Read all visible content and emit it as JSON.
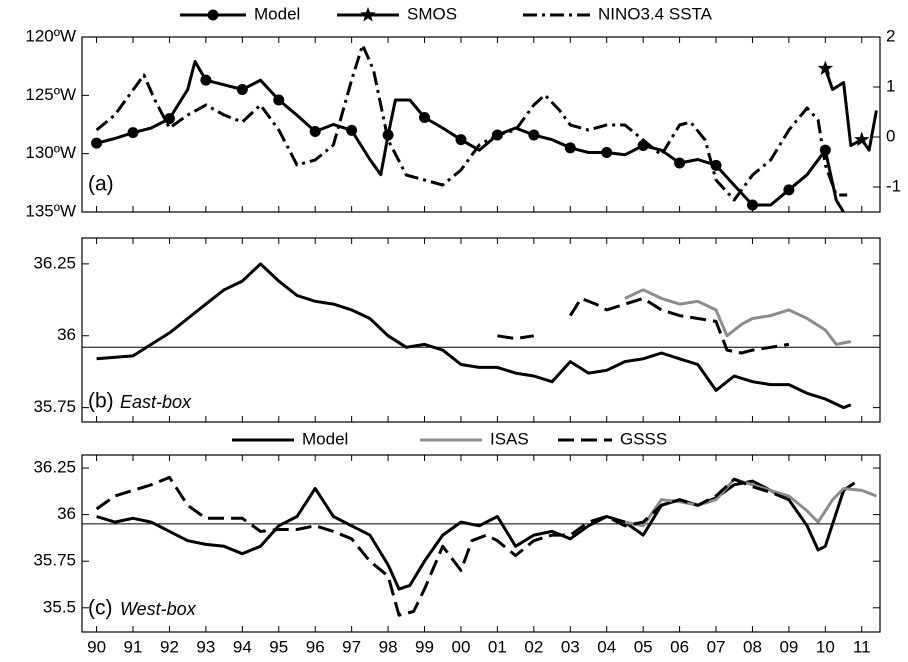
{
  "chart_data": [
    {
      "type": "line",
      "label": "(a)",
      "xlim": [
        1989.6,
        2011.5
      ],
      "ylim": [
        135,
        120
      ],
      "yticks": [
        {
          "value": 120,
          "label": "120ºW"
        },
        {
          "value": 125,
          "label": "125ºW"
        },
        {
          "value": 130,
          "label": "130ºW"
        },
        {
          "value": 135,
          "label": "135ºW"
        }
      ],
      "y2lim": [
        -1.5,
        2
      ],
      "y2ticks": [
        -1,
        0,
        1,
        2
      ],
      "series": [
        {
          "name": "Model",
          "color": "#000000",
          "marker": "circle",
          "x": [
            1990,
            1990.5,
            1991,
            1991.5,
            1992,
            1992.5,
            1992.7,
            1993,
            1993.5,
            1994,
            1994.5,
            1995,
            1995.5,
            1996,
            1996.5,
            1997,
            1997.5,
            1997.8,
            1998,
            1998.2,
            1998.6,
            1999,
            1999.5,
            2000,
            2000.5,
            2001,
            2001.5,
            2002,
            2002.5,
            2003,
            2003.5,
            2004,
            2004.5,
            2005,
            2005.5,
            2006,
            2006.5,
            2007,
            2007.5,
            2008,
            2008.5,
            2009,
            2009.5,
            2010,
            2010.3,
            2010.5
          ],
          "values": [
            129.1,
            128.7,
            128.2,
            127.8,
            127,
            124.5,
            122.1,
            123.7,
            124.1,
            124.5,
            123.7,
            125.4,
            126.7,
            128.1,
            127.5,
            128,
            130.5,
            131.8,
            128.4,
            125.4,
            125.4,
            126.9,
            127.8,
            128.8,
            129.7,
            128.4,
            127.8,
            128.4,
            128.8,
            129.5,
            129.9,
            129.9,
            130.1,
            129.3,
            129.7,
            130.8,
            130.5,
            131,
            132.7,
            134.4,
            134.4,
            133.1,
            131.8,
            129.7,
            134,
            135
          ]
        },
        {
          "name": "SMOS",
          "color": "#000000",
          "marker": "star",
          "x": [
            2010,
            2010.2,
            2010.5,
            2010.7,
            2011,
            2011.2,
            2011.4
          ],
          "values": [
            122.7,
            124.5,
            123.9,
            129.3,
            128.8,
            129.7,
            126.3
          ]
        },
        {
          "name": "NINO3.4 SSTA",
          "color": "#000000",
          "axis": "y2",
          "dash": "14,5,3,5",
          "x": [
            1990,
            1990.5,
            1991,
            1991.3,
            1991.6,
            1992,
            1992.5,
            1993,
            1993.5,
            1994,
            1994.5,
            1995,
            1995.5,
            1996,
            1996.5,
            1997,
            1997.3,
            1997.6,
            1998,
            1998.5,
            1999,
            1999.5,
            2000,
            2000.5,
            2001,
            2001.5,
            2002,
            2002.3,
            2002.7,
            2003,
            2003.5,
            2004,
            2004.5,
            2005,
            2005.5,
            2006,
            2006.3,
            2006.7,
            2007,
            2007.5,
            2008,
            2008.5,
            2009,
            2009.5,
            2009.8,
            2010,
            2010.3,
            2010.6
          ],
          "values": [
            0.14,
            0.44,
            0.94,
            1.24,
            0.74,
            0.18,
            0.44,
            0.64,
            0.44,
            0.3,
            0.64,
            0.14,
            -0.56,
            -0.46,
            -0.16,
            1.14,
            1.84,
            1.34,
            -0.06,
            -0.76,
            -0.86,
            -0.96,
            -0.66,
            -0.16,
            0.04,
            0.14,
            0.64,
            0.84,
            0.54,
            0.24,
            0.14,
            0.24,
            0.24,
            -0.06,
            -0.36,
            0.24,
            0.3,
            -0.06,
            -0.86,
            -1.26,
            -0.76,
            -0.46,
            0.14,
            0.58,
            0.34,
            -0.56,
            -1.16,
            -1.16
          ]
        }
      ]
    },
    {
      "type": "line",
      "label": "(b)",
      "subtitle": "East-box",
      "xlim": [
        1989.6,
        2011.5
      ],
      "ylim": [
        35.7,
        36.34
      ],
      "yticks": [
        {
          "value": 35.75,
          "label": "35.75"
        },
        {
          "value": 36,
          "label": "36"
        },
        {
          "value": 36.25,
          "label": "36.25"
        }
      ],
      "reference": 35.96,
      "series": [
        {
          "name": "Model",
          "color": "#000000",
          "x": [
            1990,
            1991,
            1991.5,
            1992,
            1992.5,
            1993,
            1993.5,
            1994,
            1994.5,
            1995,
            1995.5,
            1996,
            1996.5,
            1997,
            1997.5,
            1998,
            1998.5,
            1999,
            1999.5,
            2000,
            2000.5,
            2001,
            2001.5,
            2002,
            2002.5,
            2003,
            2003.5,
            2004,
            2004.5,
            2005,
            2005.5,
            2006,
            2006.5,
            2007,
            2007.5,
            2008,
            2008.5,
            2009,
            2009.5,
            2010,
            2010.5,
            2010.7
          ],
          "values": [
            35.92,
            35.93,
            35.97,
            36.01,
            36.06,
            36.11,
            36.16,
            36.19,
            36.25,
            36.19,
            36.14,
            36.12,
            36.11,
            36.09,
            36.06,
            36,
            35.96,
            35.97,
            35.95,
            35.9,
            35.89,
            35.89,
            35.87,
            35.86,
            35.84,
            35.91,
            35.87,
            35.88,
            35.91,
            35.92,
            35.94,
            35.92,
            35.9,
            35.81,
            35.86,
            35.84,
            35.83,
            35.83,
            35.8,
            35.78,
            35.75,
            35.76
          ]
        },
        {
          "name": "ISAS",
          "color": "#8c8c8c",
          "x": [
            2004.5,
            2005,
            2005.5,
            2006,
            2006.5,
            2007,
            2007.3,
            2007.7,
            2008,
            2008.5,
            2009,
            2009.5,
            2010,
            2010.3,
            2010.7
          ],
          "values": [
            36.13,
            36.16,
            36.13,
            36.11,
            36.12,
            36.09,
            36,
            36.04,
            36.06,
            36.07,
            36.09,
            36.06,
            36.02,
            35.97,
            35.98
          ]
        },
        {
          "name": "GSSS",
          "color": "#000000",
          "dash": "16,7",
          "x": [
            2000.2,
            2000.5,
            2001,
            2001.5,
            2002,
            2002.5,
            2003,
            2003.3,
            2003.7,
            2004,
            2004.5,
            2005,
            2005.5,
            2006,
            2006.5,
            2007,
            2007.3,
            2007.7,
            2008,
            2008.5,
            2009
          ],
          "values": [
            35.95,
            null,
            36,
            35.99,
            36,
            null,
            36.07,
            36.13,
            36.11,
            36.09,
            36.11,
            36.13,
            36.09,
            36.07,
            36.06,
            36.05,
            35.95,
            35.94,
            35.95,
            35.96,
            35.97
          ]
        }
      ]
    },
    {
      "type": "line",
      "label": "(c)",
      "subtitle": "West-box",
      "xlim": [
        1989.6,
        2011.5
      ],
      "ylim": [
        35.37,
        36.32
      ],
      "yticks": [
        {
          "value": 35.5,
          "label": "35.5"
        },
        {
          "value": 35.75,
          "label": "35.75"
        },
        {
          "value": 36,
          "label": "36"
        },
        {
          "value": 36.25,
          "label": "36.25"
        }
      ],
      "reference": 35.95,
      "xticks": [
        {
          "value": 1990,
          "label": "90"
        },
        {
          "value": 1991,
          "label": "91"
        },
        {
          "value": 1992,
          "label": "92"
        },
        {
          "value": 1993,
          "label": "93"
        },
        {
          "value": 1994,
          "label": "94"
        },
        {
          "value": 1995,
          "label": "95"
        },
        {
          "value": 1996,
          "label": "96"
        },
        {
          "value": 1997,
          "label": "97"
        },
        {
          "value": 1998,
          "label": "98"
        },
        {
          "value": 1999,
          "label": "99"
        },
        {
          "value": 2000,
          "label": "00"
        },
        {
          "value": 2001,
          "label": "01"
        },
        {
          "value": 2002,
          "label": "02"
        },
        {
          "value": 2003,
          "label": "03"
        },
        {
          "value": 2004,
          "label": "04"
        },
        {
          "value": 2005,
          "label": "05"
        },
        {
          "value": 2006,
          "label": "06"
        },
        {
          "value": 2007,
          "label": "07"
        },
        {
          "value": 2008,
          "label": "08"
        },
        {
          "value": 2009,
          "label": "09"
        },
        {
          "value": 2010,
          "label": "10"
        },
        {
          "value": 2011,
          "label": "11"
        }
      ],
      "series": [
        {
          "color": "#000000",
          "x": [
            1990,
            1990.5,
            1991,
            1991.5,
            1992,
            1992.5,
            1993,
            1993.5,
            1994,
            1994.5,
            1995,
            1995.5,
            1996,
            1996.5,
            1997,
            1997.5,
            1998,
            1998.3,
            1998.6,
            1999,
            1999.5,
            2000,
            2000.5,
            2001,
            2001.5,
            2002,
            2002.5,
            2003,
            2003.5,
            2004,
            2004.5,
            2005,
            2005.5,
            2006,
            2006.5,
            2007,
            2007.5,
            2008,
            2008.5,
            2009,
            2009.5,
            2009.8,
            2010,
            2010.5,
            2010.8
          ],
          "values": [
            35.99,
            35.96,
            35.98,
            35.96,
            35.91,
            35.86,
            35.84,
            35.83,
            35.79,
            35.83,
            35.94,
            35.99,
            36.14,
            35.99,
            35.94,
            35.89,
            35.73,
            35.6,
            35.62,
            35.75,
            35.89,
            35.96,
            35.94,
            35.99,
            35.83,
            35.89,
            35.91,
            35.87,
            35.94,
            35.99,
            35.96,
            35.89,
            36.05,
            36.08,
            36.05,
            36.09,
            36.16,
            36.18,
            36.13,
            36.08,
            35.94,
            35.81,
            35.83,
            36.13,
            36.17
          ]
        },
        {
          "color": "#8c8c8c",
          "x": [
            2004.5,
            2005,
            2005.5,
            2006,
            2006.5,
            2007,
            2007.5,
            2008,
            2008.5,
            2009,
            2009.5,
            2009.8,
            2010.2,
            2010.5,
            2011,
            2011.4
          ],
          "values": [
            35.96,
            35.94,
            36.08,
            36.07,
            36.05,
            36.08,
            36.19,
            36.16,
            36.13,
            36.1,
            36.02,
            35.96,
            36.08,
            36.14,
            36.13,
            36.1
          ]
        },
        {
          "color": "#000000",
          "dash": "16,7",
          "x": [
            1990,
            1990.5,
            1991,
            1991.5,
            1992,
            1992.5,
            1993,
            1993.5,
            1994,
            1994.5,
            1995,
            1995.5,
            1996,
            1996.5,
            1997,
            1997.5,
            1998,
            1998.3,
            1998.7,
            1999,
            1999.5,
            2000,
            2000.3,
            2000.7,
            2001,
            2001.5,
            2002,
            2002.5,
            2003,
            2003.5,
            2004,
            2004.5,
            2005,
            2005.5,
            2006,
            2006.5,
            2007,
            2007.5,
            2008,
            2008.5,
            2009
          ],
          "values": [
            36.03,
            36.1,
            36.13,
            36.16,
            36.2,
            36.05,
            35.98,
            35.98,
            35.98,
            35.91,
            35.92,
            35.92,
            35.94,
            35.91,
            35.87,
            35.75,
            35.67,
            35.46,
            35.48,
            35.6,
            35.83,
            35.7,
            35.86,
            35.89,
            35.86,
            35.78,
            35.86,
            35.89,
            35.89,
            35.96,
            35.99,
            35.94,
            35.96,
            36.05,
            36.08,
            36.05,
            36.1,
            36.19,
            36.15,
            36.12,
            36.08
          ]
        }
      ]
    }
  ]
}
